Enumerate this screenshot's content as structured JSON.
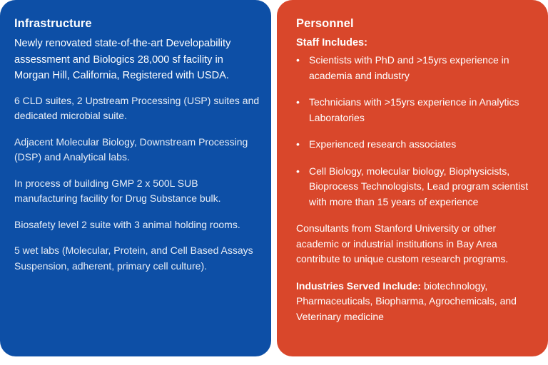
{
  "infrastructure": {
    "title": "Infrastructure",
    "intro": "Newly renovated state-of-the-art Developability assessment and Biologics 28,000 sf facility in Morgan Hill, California, Registered with USDA.",
    "paragraphs": [
      "6 CLD suites, 2 Upstream Processing (USP) suites and dedicated microbial suite.",
      "Adjacent Molecular Biology, Downstream Processing (DSP) and Analytical labs.",
      "In process of building GMP 2 x 500L SUB manufacturing facility for Drug Substance bulk.",
      "Biosafety level 2 suite with 3 animal holding rooms.",
      "5 wet labs (Molecular, Protein, and Cell Based Assays Suspension, adherent, primary cell culture)."
    ],
    "color": "#0d4fa6"
  },
  "personnel": {
    "title": "Personnel",
    "staff_heading": "Staff Includes:",
    "bullet": "•",
    "staff": [
      "Scientists with PhD and >15yrs experience in academia and industry",
      "Technicians with >15yrs experience in Analytics Laboratories",
      "Experienced research associates",
      "Cell Biology, molecular biology, Biophysicists, Bioprocess Technologists, Lead program scientist with more than 15 years of experience"
    ],
    "consultants": "Consultants from Stanford University or other academic or industrial institutions in Bay Area contribute to unique custom research programs.",
    "industries_label": "Industries Served Include:",
    "industries_text": " biotechnology, Pharmaceuticals, Biopharma, Agrochemicals, and Veterinary medicine",
    "color": "#d9472b"
  }
}
